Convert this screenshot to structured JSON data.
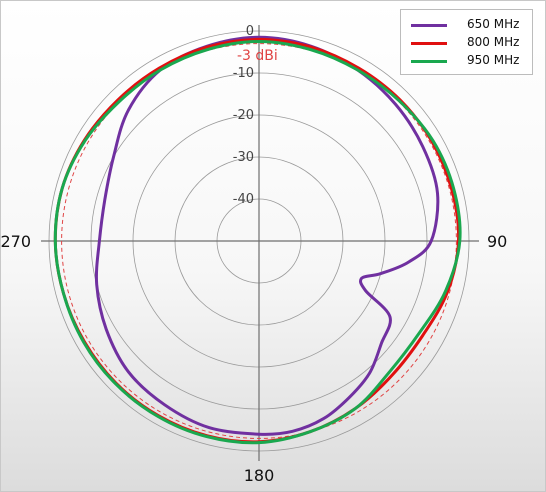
{
  "chart_data": {
    "type": "polar-line",
    "radial_unit": "dBi",
    "r_range": [
      -50,
      0
    ],
    "radial_ticks": [
      "0",
      "-10",
      "-20",
      "-30",
      "-40"
    ],
    "radial_tick_values": [
      0,
      -10,
      -20,
      -30,
      -40
    ],
    "angle_labels": [
      "90",
      "180",
      "270"
    ],
    "angle_label_values": [
      90,
      180,
      270
    ],
    "reference": {
      "value": -3,
      "label": "-3 dBi",
      "color": "#e04444"
    },
    "legend_position": "top-right",
    "series": [
      {
        "name": "650 MHz",
        "color": "#7030a0",
        "angles": [
          0,
          15,
          30,
          45,
          60,
          75,
          90,
          98,
          105,
          110,
          115,
          120,
          130,
          140,
          150,
          160,
          170,
          180,
          195,
          210,
          225,
          240,
          255,
          270,
          285,
          300,
          315,
          330,
          345,
          360
        ],
        "values": [
          -1.5,
          -2,
          -3,
          -4,
          -5,
          -6,
          -9,
          -14,
          -20,
          -24,
          -22,
          -14,
          -12,
          -9,
          -7,
          -5,
          -4,
          -4,
          -4,
          -5,
          -6,
          -8,
          -10,
          -12,
          -12,
          -10,
          -6,
          -3,
          -2,
          -1.5
        ]
      },
      {
        "name": "800 MHz",
        "color": "#e01010",
        "angles": [
          0,
          15,
          30,
          45,
          60,
          75,
          90,
          105,
          120,
          135,
          150,
          165,
          180,
          195,
          210,
          225,
          240,
          255,
          270,
          285,
          300,
          315,
          330,
          345,
          360
        ],
        "values": [
          -2,
          -2.2,
          -2.5,
          -2.5,
          -2.5,
          -2.5,
          -2.5,
          -3.5,
          -5,
          -5,
          -4,
          -3,
          -2.2,
          -2,
          -2,
          -2,
          -2,
          -1.8,
          -1.5,
          -1.5,
          -2,
          -2.5,
          -2.5,
          -2.2,
          -2
        ]
      },
      {
        "name": "950 MHz",
        "color": "#1aa84f",
        "angles": [
          0,
          15,
          30,
          45,
          60,
          75,
          90,
          105,
          120,
          135,
          150,
          165,
          180,
          195,
          210,
          225,
          240,
          255,
          270,
          285,
          300,
          315,
          330,
          345,
          360
        ],
        "values": [
          -2.5,
          -2.8,
          -3,
          -2.8,
          -2.2,
          -2,
          -2.2,
          -4,
          -6,
          -6,
          -4,
          -3,
          -2,
          -1.8,
          -1.8,
          -1.8,
          -1.8,
          -1.8,
          -1.5,
          -1.5,
          -2.2,
          -3,
          -3,
          -2.8,
          -2.5
        ]
      }
    ]
  }
}
